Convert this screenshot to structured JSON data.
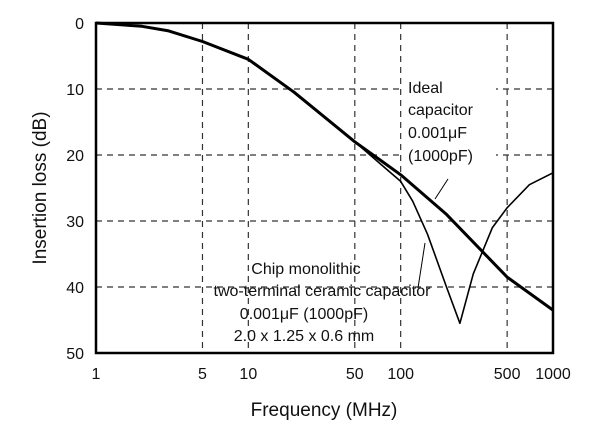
{
  "chart_data": {
    "type": "line",
    "xlabel": "Frequency (MHz)",
    "ylabel": "Insertion loss (dB)",
    "xscale": "log",
    "xlim": [
      1,
      1000
    ],
    "ylim": [
      0,
      50
    ],
    "y_inverted": true,
    "grid": true,
    "xticks": [
      "1",
      "5",
      "10",
      "50",
      "100",
      "500",
      "1000"
    ],
    "xtick_values": [
      1,
      5,
      10,
      50,
      100,
      500,
      1000
    ],
    "yticks": [
      "0",
      "10",
      "20",
      "30",
      "40",
      "50"
    ],
    "ytick_values": [
      0,
      10,
      20,
      30,
      40,
      50
    ],
    "series": [
      {
        "x": [
          1,
          2,
          3,
          5,
          10,
          20,
          50,
          100,
          200,
          500,
          1000
        ],
        "y": [
          0,
          0.5,
          1.2,
          2.8,
          5.5,
          10.5,
          18,
          23,
          29,
          38.5,
          43.5
        ]
      },
      {
        "x": [
          1,
          2,
          3,
          5,
          10,
          20,
          50,
          100,
          120,
          150,
          200,
          245,
          300,
          400,
          500,
          700,
          1000
        ],
        "y": [
          0,
          0.5,
          1.2,
          2.8,
          5.5,
          10.5,
          18,
          24,
          27,
          32,
          40,
          45.5,
          38,
          31,
          28,
          24.5,
          22.7
        ]
      }
    ],
    "annotations": {
      "ideal": [
        "Ideal",
        "capacitor",
        "0.001μF",
        "(1000pF)"
      ],
      "chip": [
        "Chip monolithic",
        "two-terminal ceramic capacitor",
        "0.001μF (1000pF)",
        "2.0 x 1.25 x 0.6 mm"
      ]
    }
  }
}
